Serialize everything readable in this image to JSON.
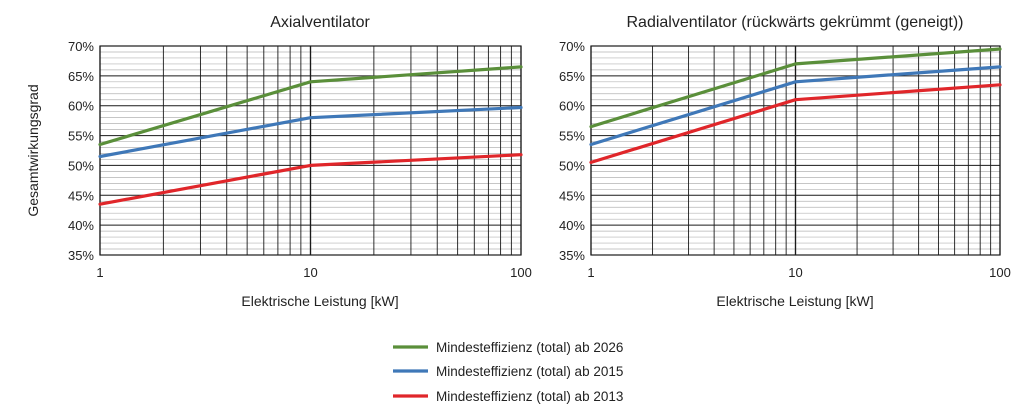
{
  "colors": {
    "series_2026": "#5a8f3a",
    "series_2015": "#3f78b8",
    "series_2013": "#e0262a",
    "grid": "#1a1a1a",
    "minor_grid": "#b4b4b4"
  },
  "legend": {
    "placement": "bottom-center",
    "items": [
      {
        "label": "Mindesteffizienz (total) ab 2026",
        "color": "#5a8f3a"
      },
      {
        "label": "Mindesteffizienz (total) ab 2015",
        "color": "#3f78b8"
      },
      {
        "label": "Mindesteffizienz (total) ab 2013",
        "color": "#e0262a"
      }
    ]
  },
  "chart_data": [
    {
      "type": "line",
      "title": "Axialventilator",
      "xlabel": "Elektrische Leistung [kW]",
      "ylabel": "Gesamtwirkungsgrad",
      "xscale": "log",
      "xlim": [
        1,
        100
      ],
      "ylim": [
        35,
        70
      ],
      "x_ticks": [
        "1",
        "10",
        "100"
      ],
      "y_ticks": [
        "35%",
        "40%",
        "45%",
        "50%",
        "55%",
        "60%",
        "65%",
        "70%"
      ],
      "grid": true,
      "series": [
        {
          "name": "Mindesteffizienz (total) ab 2026",
          "color": "#5a8f3a",
          "x": [
            1,
            10,
            100
          ],
          "y": [
            53.5,
            64,
            66.5
          ]
        },
        {
          "name": "Mindesteffizienz (total) ab 2015",
          "color": "#3f78b8",
          "x": [
            1,
            10,
            100
          ],
          "y": [
            51.5,
            58,
            59.7
          ]
        },
        {
          "name": "Mindesteffizienz (total) ab 2013",
          "color": "#e0262a",
          "x": [
            1,
            10,
            100
          ],
          "y": [
            43.5,
            50,
            51.8
          ]
        }
      ]
    },
    {
      "type": "line",
      "title": "Radialventilator (rückwärts gekrümmt (geneigt))",
      "xlabel": "Elektrische Leistung [kW]",
      "ylabel": "",
      "xscale": "log",
      "xlim": [
        1,
        100
      ],
      "ylim": [
        35,
        70
      ],
      "x_ticks": [
        "1",
        "10",
        "100"
      ],
      "y_ticks": [
        "35%",
        "40%",
        "45%",
        "50%",
        "55%",
        "60%",
        "65%",
        "70%"
      ],
      "grid": true,
      "series": [
        {
          "name": "Mindesteffizienz (total) ab 2026",
          "color": "#5a8f3a",
          "x": [
            1,
            10,
            100
          ],
          "y": [
            56.5,
            67,
            69.5
          ]
        },
        {
          "name": "Mindesteffizienz (total) ab 2015",
          "color": "#3f78b8",
          "x": [
            1,
            10,
            100
          ],
          "y": [
            53.5,
            64,
            66.5
          ]
        },
        {
          "name": "Mindesteffizienz (total) ab 2013",
          "color": "#e0262a",
          "x": [
            1,
            10,
            100
          ],
          "y": [
            50.5,
            61,
            63.5
          ]
        }
      ]
    }
  ]
}
